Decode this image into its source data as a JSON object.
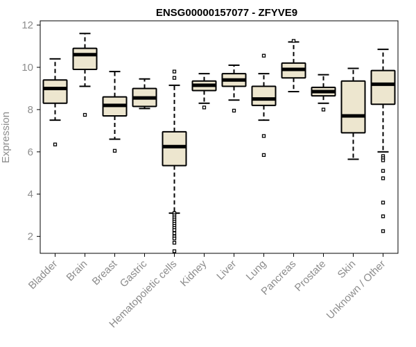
{
  "chart_data": {
    "type": "boxplot",
    "title": "ENSG00000157077 - ZFYVE9",
    "xlabel": "",
    "ylabel": "Expression",
    "ylim": [
      1.2,
      12.2
    ],
    "yticks": [
      2,
      4,
      6,
      8,
      10,
      12
    ],
    "colors": {
      "box_fill": "#ede6cf",
      "stroke": "#000000",
      "axis_text": "#8c8c8c"
    },
    "categories": [
      {
        "name": "Bladder",
        "min": 7.5,
        "q1": 8.3,
        "median": 9.0,
        "q3": 9.4,
        "max": 10.4,
        "outliers": [
          6.35
        ]
      },
      {
        "name": "Brain",
        "min": 9.1,
        "q1": 9.9,
        "median": 10.6,
        "q3": 10.9,
        "max": 11.6,
        "outliers": [
          7.75
        ]
      },
      {
        "name": "Breast",
        "min": 6.6,
        "q1": 7.7,
        "median": 8.2,
        "q3": 8.6,
        "max": 9.8,
        "outliers": [
          6.05
        ]
      },
      {
        "name": "Gastric",
        "min": 8.05,
        "q1": 8.15,
        "median": 8.55,
        "q3": 9.0,
        "max": 9.45,
        "outliers": []
      },
      {
        "name": "Hematopoietic cells",
        "min": 3.1,
        "q1": 5.35,
        "median": 6.25,
        "q3": 6.95,
        "max": 9.15,
        "outliers": [
          9.8,
          9.5,
          3.1,
          3.0,
          2.9,
          2.8,
          2.7,
          2.6,
          2.5,
          2.4,
          2.3,
          2.15,
          2.0,
          1.9,
          1.7,
          1.3
        ]
      },
      {
        "name": "Kidney",
        "min": 8.3,
        "q1": 8.9,
        "median": 9.15,
        "q3": 9.35,
        "max": 9.7,
        "outliers": [
          8.1
        ]
      },
      {
        "name": "Liver",
        "min": 8.45,
        "q1": 9.1,
        "median": 9.4,
        "q3": 9.7,
        "max": 10.1,
        "outliers": [
          7.95
        ]
      },
      {
        "name": "Lung",
        "min": 7.5,
        "q1": 8.2,
        "median": 8.5,
        "q3": 9.1,
        "max": 9.7,
        "outliers": [
          10.55,
          6.75,
          5.85
        ]
      },
      {
        "name": "Pancreas",
        "min": 8.85,
        "q1": 9.5,
        "median": 9.9,
        "q3": 10.2,
        "max": 11.2,
        "outliers": [
          11.25
        ]
      },
      {
        "name": "Prostate",
        "min": 8.3,
        "q1": 8.65,
        "median": 8.85,
        "q3": 9.05,
        "max": 9.65,
        "outliers": [
          8.0
        ]
      },
      {
        "name": "Skin",
        "min": 5.65,
        "q1": 6.9,
        "median": 7.7,
        "q3": 9.35,
        "max": 9.95,
        "outliers": []
      },
      {
        "name": "Unknown / Other",
        "min": 6.0,
        "q1": 8.25,
        "median": 9.2,
        "q3": 9.85,
        "max": 10.85,
        "outliers": [
          5.8,
          5.7,
          5.6,
          5.1,
          4.75,
          3.6,
          2.95,
          2.25
        ]
      }
    ]
  }
}
